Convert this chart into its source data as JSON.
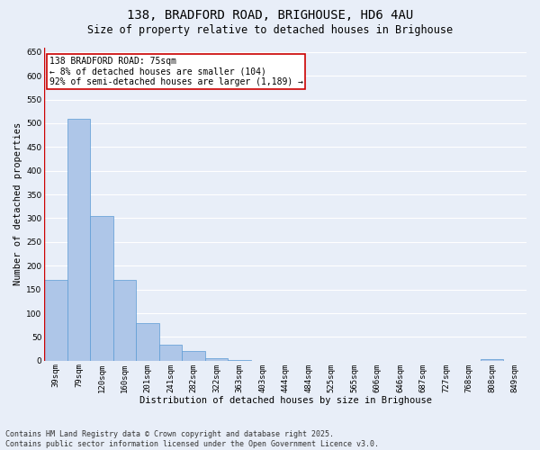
{
  "title": "138, BRADFORD ROAD, BRIGHOUSE, HD6 4AU",
  "subtitle": "Size of property relative to detached houses in Brighouse",
  "xlabel": "Distribution of detached houses by size in Brighouse",
  "ylabel": "Number of detached properties",
  "categories": [
    "39sqm",
    "79sqm",
    "120sqm",
    "160sqm",
    "201sqm",
    "241sqm",
    "282sqm",
    "322sqm",
    "363sqm",
    "403sqm",
    "444sqm",
    "484sqm",
    "525sqm",
    "565sqm",
    "606sqm",
    "646sqm",
    "687sqm",
    "727sqm",
    "768sqm",
    "808sqm",
    "849sqm"
  ],
  "values": [
    170,
    510,
    305,
    170,
    80,
    33,
    20,
    6,
    1,
    0,
    0,
    0,
    0,
    0,
    0,
    0,
    0,
    0,
    0,
    4,
    0
  ],
  "bar_color": "#aec6e8",
  "bar_edge_color": "#5b9bd5",
  "annotation_text": "138 BRADFORD ROAD: 75sqm\n← 8% of detached houses are smaller (104)\n92% of semi-detached houses are larger (1,189) →",
  "annotation_box_color": "#ffffff",
  "annotation_box_edge_color": "#cc0000",
  "property_line_color": "#cc0000",
  "ylim": [
    0,
    660
  ],
  "yticks": [
    0,
    50,
    100,
    150,
    200,
    250,
    300,
    350,
    400,
    450,
    500,
    550,
    600,
    650
  ],
  "footer": "Contains HM Land Registry data © Crown copyright and database right 2025.\nContains public sector information licensed under the Open Government Licence v3.0.",
  "background_color": "#e8eef8",
  "grid_color": "#ffffff",
  "title_fontsize": 10,
  "subtitle_fontsize": 8.5,
  "axis_label_fontsize": 7.5,
  "tick_fontsize": 6.5,
  "annotation_fontsize": 7,
  "footer_fontsize": 6
}
